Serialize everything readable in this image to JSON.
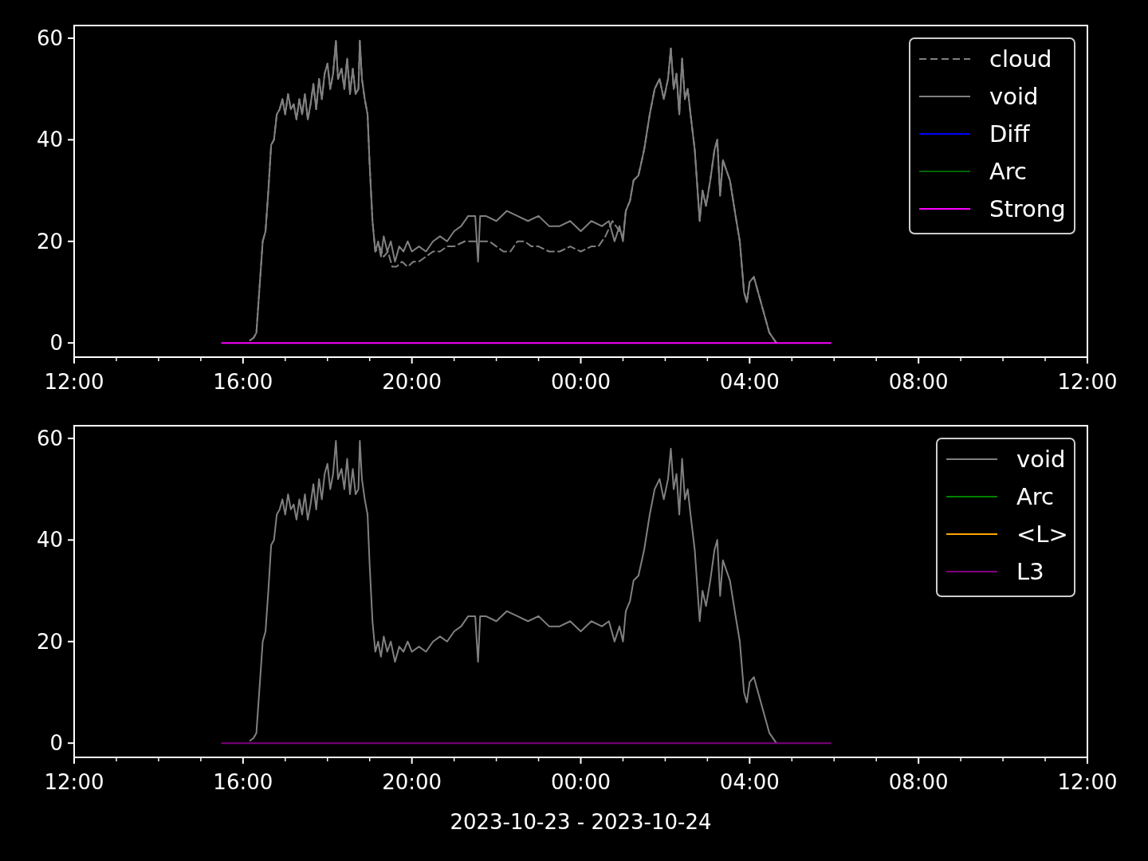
{
  "chart_data": [
    {
      "type": "line",
      "legend": "top right",
      "tick_labels": "xy",
      "xlim": [
        "2023-10-23T12:00",
        "2023-10-24T12:00"
      ],
      "ylim": [
        -2.8,
        62.5
      ],
      "yticks": [
        0,
        20,
        40,
        60
      ],
      "xticks": [
        {
          "value": "2023-10-23T12:00",
          "label": "12:00"
        },
        {
          "value": "2023-10-23T13:00",
          "label": null
        },
        {
          "value": "2023-10-23T14:00",
          "label": null
        },
        {
          "value": "2023-10-23T15:00",
          "label": null
        },
        {
          "value": "2023-10-23T16:00",
          "label": "16:00"
        },
        {
          "value": "2023-10-23T17:00",
          "label": null
        },
        {
          "value": "2023-10-23T18:00",
          "label": null
        },
        {
          "value": "2023-10-23T19:00",
          "label": null
        },
        {
          "value": "2023-10-23T20:00",
          "label": "20:00"
        },
        {
          "value": "2023-10-23T21:00",
          "label": null
        },
        {
          "value": "2023-10-23T22:00",
          "label": null
        },
        {
          "value": "2023-10-23T23:00",
          "label": null
        },
        {
          "value": "2023-10-24T00:00",
          "label": "00:00"
        },
        {
          "value": "2023-10-24T01:00",
          "label": null
        },
        {
          "value": "2023-10-24T02:00",
          "label": null
        },
        {
          "value": "2023-10-24T03:00",
          "label": null
        },
        {
          "value": "2023-10-24T04:00",
          "label": "04:00"
        },
        {
          "value": "2023-10-24T05:00",
          "label": null
        },
        {
          "value": "2023-10-24T06:00",
          "label": null
        },
        {
          "value": "2023-10-24T07:00",
          "label": null
        },
        {
          "value": "2023-10-24T08:00",
          "label": "08:00"
        },
        {
          "value": "2023-10-24T09:00",
          "label": null
        },
        {
          "value": "2023-10-24T10:00",
          "label": null
        },
        {
          "value": "2023-10-24T11:00",
          "label": null
        },
        {
          "value": "2023-10-24T12:00",
          "label": "12:00"
        }
      ],
      "series": [
        {
          "name": "cloud",
          "color": "#808080",
          "line_style": "dashed",
          "x": [
            "2023-10-23T16:10",
            "2023-10-23T16:15",
            "2023-10-23T16:19",
            "2023-10-23T16:24",
            "2023-10-23T16:28",
            "2023-10-23T16:32",
            "2023-10-23T16:36",
            "2023-10-23T16:40",
            "2023-10-23T16:44",
            "2023-10-23T16:48",
            "2023-10-23T16:52",
            "2023-10-23T16:56",
            "2023-10-23T17:00",
            "2023-10-23T17:04",
            "2023-10-23T17:08",
            "2023-10-23T17:12",
            "2023-10-23T17:16",
            "2023-10-23T17:20",
            "2023-10-23T17:24",
            "2023-10-23T17:28",
            "2023-10-23T17:32",
            "2023-10-23T17:36",
            "2023-10-23T17:40",
            "2023-10-23T17:44",
            "2023-10-23T17:48",
            "2023-10-23T17:52",
            "2023-10-23T17:56",
            "2023-10-23T18:00",
            "2023-10-23T18:04",
            "2023-10-23T18:08",
            "2023-10-23T18:12",
            "2023-10-23T18:15",
            "2023-10-23T18:20",
            "2023-10-23T18:24",
            "2023-10-23T18:28",
            "2023-10-23T18:32",
            "2023-10-23T18:36",
            "2023-10-23T18:40",
            "2023-10-23T18:44",
            "2023-10-23T18:46",
            "2023-10-23T18:49",
            "2023-10-23T18:53",
            "2023-10-23T18:57",
            "2023-10-23T19:00",
            "2023-10-23T19:04",
            "2023-10-23T19:08",
            "2023-10-23T19:14",
            "2023-10-23T19:20",
            "2023-10-23T19:26",
            "2023-10-23T19:32",
            "2023-10-23T19:38",
            "2023-10-23T19:46",
            "2023-10-23T19:54",
            "2023-10-23T20:02",
            "2023-10-23T20:10",
            "2023-10-23T20:20",
            "2023-10-23T20:30",
            "2023-10-23T20:40",
            "2023-10-23T20:50",
            "2023-10-23T21:00",
            "2023-10-23T21:15",
            "2023-10-23T21:30",
            "2023-10-23T21:40",
            "2023-10-23T21:50",
            "2023-10-23T22:00",
            "2023-10-23T22:10",
            "2023-10-23T22:20",
            "2023-10-23T22:30",
            "2023-10-23T22:40",
            "2023-10-23T22:50",
            "2023-10-23T23:00",
            "2023-10-23T23:15",
            "2023-10-23T23:30",
            "2023-10-23T23:45",
            "2023-10-24T00:00",
            "2023-10-24T00:15",
            "2023-10-24T00:25",
            "2023-10-24T00:35",
            "2023-10-24T00:45",
            "2023-10-24T00:55",
            "2023-10-24T01:00",
            "2023-10-24T01:04",
            "2023-10-24T01:10",
            "2023-10-24T01:15",
            "2023-10-24T01:22",
            "2023-10-24T01:30",
            "2023-10-24T01:38",
            "2023-10-24T01:45",
            "2023-10-24T01:52",
            "2023-10-24T01:58",
            "2023-10-24T02:04",
            "2023-10-24T02:08",
            "2023-10-24T02:12",
            "2023-10-24T02:16",
            "2023-10-24T02:20",
            "2023-10-24T02:24",
            "2023-10-24T02:28",
            "2023-10-24T02:32",
            "2023-10-24T02:36",
            "2023-10-24T02:42",
            "2023-10-24T02:46",
            "2023-10-24T02:49",
            "2023-10-24T02:53",
            "2023-10-24T02:58",
            "2023-10-24T03:04",
            "2023-10-24T03:10",
            "2023-10-24T03:14",
            "2023-10-24T03:18",
            "2023-10-24T03:22",
            "2023-10-24T03:27",
            "2023-10-24T03:32",
            "2023-10-24T03:40",
            "2023-10-24T03:46",
            "2023-10-24T03:52",
            "2023-10-24T03:56",
            "2023-10-24T04:00",
            "2023-10-24T04:06",
            "2023-10-24T04:12",
            "2023-10-24T04:20",
            "2023-10-24T04:28",
            "2023-10-24T04:38"
          ],
          "values": [
            0.5,
            1,
            2,
            12,
            20,
            22,
            30,
            39,
            40,
            45,
            46,
            48,
            45,
            49,
            46,
            47,
            44,
            48,
            45,
            49,
            44,
            47,
            51,
            46,
            52,
            48,
            53,
            55,
            50,
            53,
            59.5,
            52,
            54,
            50,
            56,
            49,
            54,
            49,
            50,
            59.5,
            52,
            48,
            45,
            35,
            24,
            18,
            19,
            17,
            18,
            15,
            15,
            16,
            15,
            16,
            16,
            17,
            18,
            18,
            19,
            19,
            20,
            20,
            20,
            20,
            19,
            18,
            18,
            20,
            20,
            19,
            19,
            18,
            18,
            19,
            18,
            19,
            19,
            21,
            24,
            22,
            21,
            26,
            28,
            32,
            33,
            38,
            45,
            50,
            52,
            48,
            52,
            58,
            50,
            53,
            45,
            56,
            48,
            50,
            45,
            38,
            30,
            24,
            30,
            27,
            32,
            38,
            40,
            29,
            36,
            34,
            32,
            25,
            20,
            10,
            8,
            12,
            13,
            10,
            6,
            2,
            0
          ]
        },
        {
          "name": "void",
          "color": "#808080",
          "x": [
            "2023-10-23T16:10",
            "2023-10-23T16:15",
            "2023-10-23T16:19",
            "2023-10-23T16:24",
            "2023-10-23T16:28",
            "2023-10-23T16:32",
            "2023-10-23T16:36",
            "2023-10-23T16:40",
            "2023-10-23T16:44",
            "2023-10-23T16:48",
            "2023-10-23T16:52",
            "2023-10-23T16:56",
            "2023-10-23T17:00",
            "2023-10-23T17:04",
            "2023-10-23T17:08",
            "2023-10-23T17:12",
            "2023-10-23T17:16",
            "2023-10-23T17:20",
            "2023-10-23T17:24",
            "2023-10-23T17:28",
            "2023-10-23T17:32",
            "2023-10-23T17:36",
            "2023-10-23T17:40",
            "2023-10-23T17:44",
            "2023-10-23T17:48",
            "2023-10-23T17:52",
            "2023-10-23T17:56",
            "2023-10-23T18:00",
            "2023-10-23T18:04",
            "2023-10-23T18:08",
            "2023-10-23T18:12",
            "2023-10-23T18:15",
            "2023-10-23T18:20",
            "2023-10-23T18:24",
            "2023-10-23T18:28",
            "2023-10-23T18:32",
            "2023-10-23T18:36",
            "2023-10-23T18:40",
            "2023-10-23T18:44",
            "2023-10-23T18:46",
            "2023-10-23T18:49",
            "2023-10-23T18:53",
            "2023-10-23T18:57",
            "2023-10-23T19:00",
            "2023-10-23T19:04",
            "2023-10-23T19:08",
            "2023-10-23T19:12",
            "2023-10-23T19:16",
            "2023-10-23T19:20",
            "2023-10-23T19:25",
            "2023-10-23T19:30",
            "2023-10-23T19:36",
            "2023-10-23T19:42",
            "2023-10-23T19:48",
            "2023-10-23T19:54",
            "2023-10-23T20:00",
            "2023-10-23T20:10",
            "2023-10-23T20:20",
            "2023-10-23T20:30",
            "2023-10-23T20:40",
            "2023-10-23T20:50",
            "2023-10-23T21:00",
            "2023-10-23T21:10",
            "2023-10-23T21:20",
            "2023-10-23T21:30",
            "2023-10-23T21:34",
            "2023-10-23T21:37",
            "2023-10-23T21:45",
            "2023-10-23T22:00",
            "2023-10-23T22:15",
            "2023-10-23T22:30",
            "2023-10-23T22:45",
            "2023-10-23T23:00",
            "2023-10-23T23:15",
            "2023-10-23T23:30",
            "2023-10-23T23:45",
            "2023-10-24T00:00",
            "2023-10-24T00:15",
            "2023-10-24T00:30",
            "2023-10-24T00:40",
            "2023-10-24T00:48",
            "2023-10-24T00:55",
            "2023-10-24T01:00",
            "2023-10-24T01:04",
            "2023-10-24T01:10",
            "2023-10-24T01:15",
            "2023-10-24T01:22",
            "2023-10-24T01:30",
            "2023-10-24T01:38",
            "2023-10-24T01:45",
            "2023-10-24T01:52",
            "2023-10-24T01:58",
            "2023-10-24T02:04",
            "2023-10-24T02:08",
            "2023-10-24T02:12",
            "2023-10-24T02:16",
            "2023-10-24T02:20",
            "2023-10-24T02:24",
            "2023-10-24T02:28",
            "2023-10-24T02:32",
            "2023-10-24T02:36",
            "2023-10-24T02:42",
            "2023-10-24T02:46",
            "2023-10-24T02:49",
            "2023-10-24T02:53",
            "2023-10-24T02:58",
            "2023-10-24T03:04",
            "2023-10-24T03:10",
            "2023-10-24T03:14",
            "2023-10-24T03:18",
            "2023-10-24T03:22",
            "2023-10-24T03:27",
            "2023-10-24T03:32",
            "2023-10-24T03:40",
            "2023-10-24T03:46",
            "2023-10-24T03:52",
            "2023-10-24T03:56",
            "2023-10-24T04:00",
            "2023-10-24T04:06",
            "2023-10-24T04:12",
            "2023-10-24T04:20",
            "2023-10-24T04:28",
            "2023-10-24T04:38"
          ],
          "values": [
            0.5,
            1,
            2,
            12,
            20,
            22,
            30,
            39,
            40,
            45,
            46,
            48,
            45,
            49,
            46,
            47,
            44,
            48,
            45,
            49,
            44,
            47,
            51,
            46,
            52,
            48,
            53,
            55,
            50,
            53,
            59.5,
            52,
            54,
            50,
            56,
            49,
            54,
            49,
            50,
            59.5,
            52,
            48,
            45,
            35,
            24,
            18,
            20,
            17,
            21,
            18,
            20,
            16,
            19,
            18,
            20,
            18,
            19,
            18,
            20,
            21,
            20,
            22,
            23,
            25,
            25,
            16,
            25,
            25,
            24,
            26,
            25,
            24,
            25,
            23,
            23,
            24,
            22,
            24,
            23,
            24,
            20,
            23,
            20,
            26,
            28,
            32,
            33,
            38,
            45,
            50,
            52,
            48,
            52,
            58,
            50,
            53,
            45,
            56,
            48,
            50,
            45,
            38,
            30,
            24,
            30,
            27,
            32,
            38,
            40,
            29,
            36,
            34,
            32,
            25,
            20,
            10,
            8,
            12,
            13,
            10,
            6,
            2,
            0
          ]
        },
        {
          "name": "Diff",
          "color": "#0000ff"
        },
        {
          "name": "Arc",
          "color": "#006400"
        },
        {
          "name": "Strong",
          "color": "#ff00ff",
          "x": [
            "2023-10-23T15:30",
            "2023-10-24T05:55"
          ],
          "values": [
            0,
            0
          ]
        }
      ]
    },
    {
      "type": "line",
      "legend": "top right",
      "xlabel": "2023-10-23 - 2023-10-24",
      "xlim": [
        "2023-10-23T12:00",
        "2023-10-24T12:00"
      ],
      "ylim": [
        -2.8,
        62.5
      ],
      "yticks": [
        0,
        20,
        40,
        60
      ],
      "xticks": [
        {
          "value": "2023-10-23T12:00",
          "label": "12:00"
        },
        {
          "value": "2023-10-23T13:00",
          "label": null
        },
        {
          "value": "2023-10-23T14:00",
          "label": null
        },
        {
          "value": "2023-10-23T15:00",
          "label": null
        },
        {
          "value": "2023-10-23T16:00",
          "label": "16:00"
        },
        {
          "value": "2023-10-23T17:00",
          "label": null
        },
        {
          "value": "2023-10-23T18:00",
          "label": null
        },
        {
          "value": "2023-10-23T19:00",
          "label": null
        },
        {
          "value": "2023-10-23T20:00",
          "label": "20:00"
        },
        {
          "value": "2023-10-23T21:00",
          "label": null
        },
        {
          "value": "2023-10-23T22:00",
          "label": null
        },
        {
          "value": "2023-10-23T23:00",
          "label": null
        },
        {
          "value": "2023-10-24T00:00",
          "label": "00:00"
        },
        {
          "value": "2023-10-24T01:00",
          "label": null
        },
        {
          "value": "2023-10-24T02:00",
          "label": null
        },
        {
          "value": "2023-10-24T03:00",
          "label": null
        },
        {
          "value": "2023-10-24T04:00",
          "label": "04:00"
        },
        {
          "value": "2023-10-24T05:00",
          "label": null
        },
        {
          "value": "2023-10-24T06:00",
          "label": null
        },
        {
          "value": "2023-10-24T07:00",
          "label": null
        },
        {
          "value": "2023-10-24T08:00",
          "label": "08:00"
        },
        {
          "value": "2023-10-24T09:00",
          "label": null
        },
        {
          "value": "2023-10-24T10:00",
          "label": null
        },
        {
          "value": "2023-10-24T11:00",
          "label": null
        },
        {
          "value": "2023-10-24T12:00",
          "label": "12:00"
        }
      ],
      "series": [
        {
          "name": "void",
          "color": "#808080",
          "x": [
            "2023-10-23T16:10",
            "2023-10-23T16:15",
            "2023-10-23T16:19",
            "2023-10-23T16:24",
            "2023-10-23T16:28",
            "2023-10-23T16:32",
            "2023-10-23T16:36",
            "2023-10-23T16:40",
            "2023-10-23T16:44",
            "2023-10-23T16:48",
            "2023-10-23T16:52",
            "2023-10-23T16:56",
            "2023-10-23T17:00",
            "2023-10-23T17:04",
            "2023-10-23T17:08",
            "2023-10-23T17:12",
            "2023-10-23T17:16",
            "2023-10-23T17:20",
            "2023-10-23T17:24",
            "2023-10-23T17:28",
            "2023-10-23T17:32",
            "2023-10-23T17:36",
            "2023-10-23T17:40",
            "2023-10-23T17:44",
            "2023-10-23T17:48",
            "2023-10-23T17:52",
            "2023-10-23T17:56",
            "2023-10-23T18:00",
            "2023-10-23T18:04",
            "2023-10-23T18:08",
            "2023-10-23T18:12",
            "2023-10-23T18:15",
            "2023-10-23T18:20",
            "2023-10-23T18:24",
            "2023-10-23T18:28",
            "2023-10-23T18:32",
            "2023-10-23T18:36",
            "2023-10-23T18:40",
            "2023-10-23T18:44",
            "2023-10-23T18:46",
            "2023-10-23T18:49",
            "2023-10-23T18:53",
            "2023-10-23T18:57",
            "2023-10-23T19:00",
            "2023-10-23T19:04",
            "2023-10-23T19:08",
            "2023-10-23T19:12",
            "2023-10-23T19:16",
            "2023-10-23T19:20",
            "2023-10-23T19:25",
            "2023-10-23T19:30",
            "2023-10-23T19:36",
            "2023-10-23T19:42",
            "2023-10-23T19:48",
            "2023-10-23T19:54",
            "2023-10-23T20:00",
            "2023-10-23T20:10",
            "2023-10-23T20:20",
            "2023-10-23T20:30",
            "2023-10-23T20:40",
            "2023-10-23T20:50",
            "2023-10-23T21:00",
            "2023-10-23T21:10",
            "2023-10-23T21:20",
            "2023-10-23T21:30",
            "2023-10-23T21:34",
            "2023-10-23T21:37",
            "2023-10-23T21:45",
            "2023-10-23T22:00",
            "2023-10-23T22:15",
            "2023-10-23T22:30",
            "2023-10-23T22:45",
            "2023-10-23T23:00",
            "2023-10-23T23:15",
            "2023-10-23T23:30",
            "2023-10-23T23:45",
            "2023-10-24T00:00",
            "2023-10-24T00:15",
            "2023-10-24T00:30",
            "2023-10-24T00:40",
            "2023-10-24T00:48",
            "2023-10-24T00:55",
            "2023-10-24T01:00",
            "2023-10-24T01:04",
            "2023-10-24T01:10",
            "2023-10-24T01:15",
            "2023-10-24T01:22",
            "2023-10-24T01:30",
            "2023-10-24T01:38",
            "2023-10-24T01:45",
            "2023-10-24T01:52",
            "2023-10-24T01:58",
            "2023-10-24T02:04",
            "2023-10-24T02:08",
            "2023-10-24T02:12",
            "2023-10-24T02:16",
            "2023-10-24T02:20",
            "2023-10-24T02:24",
            "2023-10-24T02:28",
            "2023-10-24T02:32",
            "2023-10-24T02:36",
            "2023-10-24T02:42",
            "2023-10-24T02:46",
            "2023-10-24T02:49",
            "2023-10-24T02:53",
            "2023-10-24T02:58",
            "2023-10-24T03:04",
            "2023-10-24T03:10",
            "2023-10-24T03:14",
            "2023-10-24T03:18",
            "2023-10-24T03:22",
            "2023-10-24T03:27",
            "2023-10-24T03:32",
            "2023-10-24T03:40",
            "2023-10-24T03:46",
            "2023-10-24T03:52",
            "2023-10-24T03:56",
            "2023-10-24T04:00",
            "2023-10-24T04:06",
            "2023-10-24T04:12",
            "2023-10-24T04:20",
            "2023-10-24T04:28",
            "2023-10-24T04:38"
          ],
          "values": [
            0.5,
            1,
            2,
            12,
            20,
            22,
            30,
            39,
            40,
            45,
            46,
            48,
            45,
            49,
            46,
            47,
            44,
            48,
            45,
            49,
            44,
            47,
            51,
            46,
            52,
            48,
            53,
            55,
            50,
            53,
            59.5,
            52,
            54,
            50,
            56,
            49,
            54,
            49,
            50,
            59.5,
            52,
            48,
            45,
            35,
            24,
            18,
            20,
            17,
            21,
            18,
            20,
            16,
            19,
            18,
            20,
            18,
            19,
            18,
            20,
            21,
            20,
            22,
            23,
            25,
            25,
            16,
            25,
            25,
            24,
            26,
            25,
            24,
            25,
            23,
            23,
            24,
            22,
            24,
            23,
            24,
            20,
            23,
            20,
            26,
            28,
            32,
            33,
            38,
            45,
            50,
            52,
            48,
            52,
            58,
            50,
            53,
            45,
            56,
            48,
            50,
            45,
            38,
            30,
            24,
            30,
            27,
            32,
            38,
            40,
            29,
            36,
            34,
            32,
            25,
            20,
            10,
            8,
            12,
            13,
            10,
            6,
            2,
            0
          ]
        },
        {
          "name": "Arc",
          "color": "#008000"
        },
        {
          "name": "<L>",
          "color": "#ffa500"
        },
        {
          "name": "L3",
          "color": "#800080",
          "x": [
            "2023-10-23T15:30",
            "2023-10-24T05:55"
          ],
          "values": [
            0,
            0
          ]
        }
      ]
    }
  ]
}
